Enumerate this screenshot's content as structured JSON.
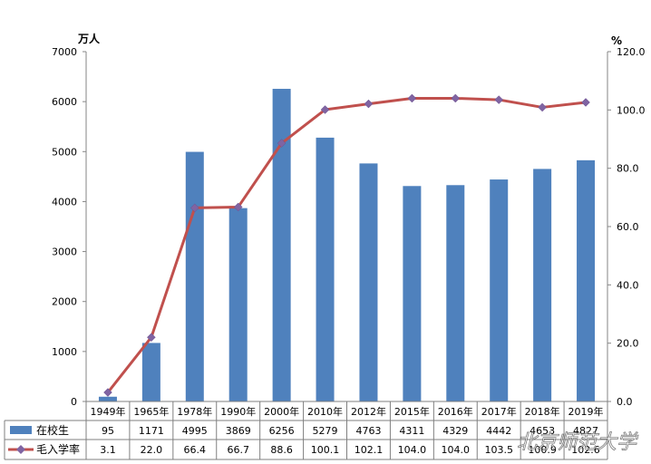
{
  "chart_data": {
    "type": "bar",
    "categories": [
      "1949年",
      "1965年",
      "1978年",
      "1990年",
      "2000年",
      "2010年",
      "2012年",
      "2015年",
      "2016年",
      "2017年",
      "2018年",
      "2019年"
    ],
    "series": [
      {
        "name": "在校生",
        "type": "bar",
        "axis": "left",
        "color": "#4F81BD",
        "values": [
          95,
          1171,
          4995,
          3869,
          6256,
          5279,
          4763,
          4311,
          4329,
          4442,
          4653,
          4827
        ]
      },
      {
        "name": "毛入学率",
        "type": "line",
        "axis": "right",
        "color": "#C0504D",
        "marker_color": "#8064A2",
        "values": [
          3.1,
          22.0,
          66.4,
          66.7,
          88.6,
          100.1,
          102.1,
          104.0,
          104.0,
          103.5,
          100.9,
          102.6
        ]
      }
    ],
    "y_left": {
      "unit": "万人",
      "min": 0,
      "max": 7000,
      "step": 1000
    },
    "y_right": {
      "unit": "%",
      "min": 0,
      "max": 120,
      "step": 20
    },
    "data_table": true,
    "legend": "in data table rows",
    "watermark": "北京师范大学"
  }
}
